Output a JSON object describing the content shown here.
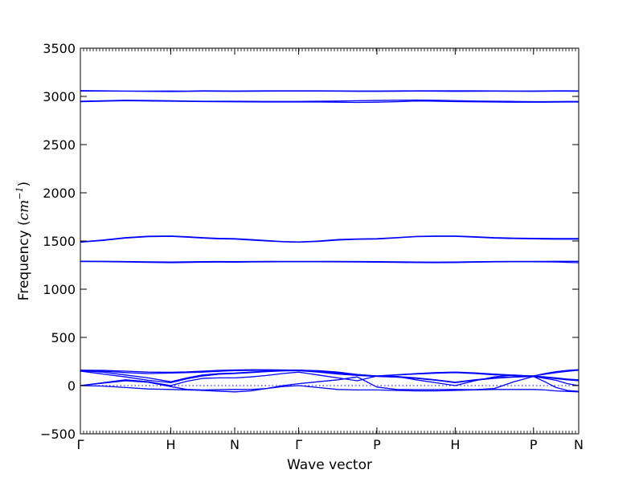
{
  "chart_data": {
    "type": "line",
    "xlabel": "Wave vector",
    "ylabel_text": "Frequency (",
    "ylabel_unit": "cm",
    "ylabel_exp": "−1",
    "ylabel_close": ")",
    "ylim": [
      -500,
      3500
    ],
    "y_ticks": [
      -500,
      0,
      500,
      1000,
      1500,
      2000,
      2500,
      3000,
      3500
    ],
    "k_points": [
      {
        "label": "Γ",
        "pos": 0
      },
      {
        "label": "H",
        "pos": 1
      },
      {
        "label": "N",
        "pos": 1.7071
      },
      {
        "label": "Γ",
        "pos": 2.4142
      },
      {
        "label": "P",
        "pos": 3.2802
      },
      {
        "label": "H",
        "pos": 4.1463
      },
      {
        "label": "P",
        "pos": 5.0123
      },
      {
        "label": "N",
        "pos": 5.5123
      }
    ],
    "zero_reference_line": true,
    "line_color": "#0000ff",
    "band_samples_per_segment": 5,
    "bands": [
      {
        "segments": [
          [
            3060,
            3058,
            3055,
            3055,
            3056
          ],
          [
            3056,
            3055,
            3058,
            3057,
            3056
          ],
          [
            3056,
            3057,
            3058,
            3058,
            3058
          ],
          [
            3058,
            3058,
            3057,
            3056,
            3056
          ],
          [
            3056,
            3057,
            3058,
            3058,
            3058
          ],
          [
            3058,
            3058,
            3057,
            3056,
            3056
          ],
          [
            3056,
            3057,
            3058,
            3058,
            3057
          ]
        ]
      },
      {
        "segments": [
          [
            3055,
            3055,
            3054,
            3052,
            3050
          ],
          [
            3050,
            3052,
            3054,
            3053,
            3052
          ],
          [
            3052,
            3053,
            3054,
            3055,
            3055
          ],
          [
            3055,
            3055,
            3054,
            3052,
            3052
          ],
          [
            3052,
            3053,
            3055,
            3054,
            3052
          ],
          [
            3052,
            3053,
            3054,
            3053,
            3052
          ],
          [
            3052,
            3053,
            3055,
            3054,
            3053
          ]
        ]
      },
      {
        "segments": [
          [
            2950,
            2955,
            2960,
            2958,
            2955
          ],
          [
            2955,
            2952,
            2950,
            2950,
            2950
          ],
          [
            2950,
            2949,
            2948,
            2948,
            2948
          ],
          [
            2948,
            2950,
            2952,
            2955,
            2958
          ],
          [
            2958,
            2960,
            2962,
            2960,
            2956
          ],
          [
            2956,
            2952,
            2950,
            2948,
            2946
          ],
          [
            2946,
            2946,
            2947,
            2948,
            2948
          ]
        ]
      },
      {
        "segments": [
          [
            2945,
            2950,
            2955,
            2952,
            2950
          ],
          [
            2950,
            2948,
            2946,
            2945,
            2944
          ],
          [
            2944,
            2943,
            2942,
            2942,
            2942
          ],
          [
            2942,
            2942,
            2940,
            2938,
            2940
          ],
          [
            2940,
            2945,
            2952,
            2950,
            2946
          ],
          [
            2946,
            2944,
            2942,
            2940,
            2940
          ],
          [
            2940,
            2940,
            2941,
            2942,
            2942
          ]
        ]
      },
      {
        "segments": [
          [
            1490,
            1510,
            1535,
            1550,
            1552
          ],
          [
            1552,
            1545,
            1535,
            1528,
            1525
          ],
          [
            1525,
            1515,
            1505,
            1495,
            1490
          ],
          [
            1490,
            1500,
            1515,
            1522,
            1525
          ],
          [
            1525,
            1535,
            1548,
            1552,
            1552
          ],
          [
            1552,
            1545,
            1535,
            1530,
            1528
          ],
          [
            1528,
            1527,
            1526,
            1526,
            1526
          ]
        ]
      },
      {
        "segments": [
          [
            1488,
            1505,
            1530,
            1545,
            1548
          ],
          [
            1548,
            1540,
            1530,
            1522,
            1520
          ],
          [
            1520,
            1510,
            1500,
            1492,
            1488
          ],
          [
            1488,
            1495,
            1510,
            1518,
            1520
          ],
          [
            1520,
            1532,
            1545,
            1548,
            1548
          ],
          [
            1548,
            1540,
            1530,
            1525,
            1522
          ],
          [
            1522,
            1520,
            1519,
            1519,
            1519
          ]
        ]
      },
      {
        "segments": [
          [
            1290,
            1289,
            1287,
            1284,
            1282
          ],
          [
            1282,
            1284,
            1286,
            1287,
            1286
          ],
          [
            1286,
            1287,
            1288,
            1288,
            1288
          ],
          [
            1288,
            1288,
            1288,
            1287,
            1286
          ],
          [
            1286,
            1284,
            1282,
            1281,
            1282
          ],
          [
            1282,
            1285,
            1287,
            1288,
            1288
          ],
          [
            1288,
            1288,
            1289,
            1289,
            1289
          ]
        ]
      },
      {
        "segments": [
          [
            1287,
            1286,
            1283,
            1278,
            1275
          ],
          [
            1275,
            1277,
            1280,
            1281,
            1280
          ],
          [
            1280,
            1282,
            1284,
            1285,
            1285
          ],
          [
            1285,
            1285,
            1284,
            1282,
            1280
          ],
          [
            1280,
            1278,
            1276,
            1275,
            1276
          ],
          [
            1276,
            1280,
            1284,
            1285,
            1285
          ],
          [
            1285,
            1284,
            1282,
            1278,
            1275
          ]
        ]
      },
      {
        "segments": [
          [
            160,
            158,
            150,
            140,
            138
          ],
          [
            138,
            142,
            150,
            158,
            162
          ],
          [
            162,
            164,
            164,
            162,
            160
          ],
          [
            160,
            155,
            140,
            115,
            100
          ],
          [
            100,
            112,
            125,
            135,
            140
          ],
          [
            140,
            132,
            120,
            108,
            100
          ],
          [
            100,
            125,
            145,
            158,
            165
          ]
        ]
      },
      {
        "segments": [
          [
            158,
            150,
            135,
            125,
            130
          ],
          [
            130,
            135,
            140,
            148,
            155
          ],
          [
            155,
            158,
            160,
            160,
            160
          ],
          [
            160,
            150,
            130,
            110,
            100
          ],
          [
            100,
            110,
            120,
            128,
            135
          ],
          [
            135,
            125,
            112,
            104,
            100
          ],
          [
            100,
            118,
            135,
            148,
            160
          ]
        ]
      },
      {
        "segments": [
          [
            155,
            140,
            110,
            80,
            40
          ],
          [
            40,
            80,
            110,
            125,
            130
          ],
          [
            130,
            140,
            150,
            157,
            160
          ],
          [
            160,
            145,
            125,
            110,
            100
          ],
          [
            100,
            95,
            80,
            60,
            35
          ],
          [
            35,
            60,
            80,
            92,
            100
          ],
          [
            100,
            90,
            80,
            68,
            60
          ]
        ]
      },
      {
        "segments": [
          [
            150,
            120,
            90,
            55,
            30
          ],
          [
            30,
            70,
            100,
            118,
            125
          ],
          [
            125,
            135,
            145,
            152,
            155
          ],
          [
            155,
            140,
            120,
            105,
            95
          ],
          [
            95,
            88,
            75,
            55,
            30
          ],
          [
            30,
            55,
            75,
            88,
            95
          ],
          [
            95,
            85,
            72,
            60,
            50
          ]
        ]
      },
      {
        "segments": [
          [
            0,
            30,
            60,
            40,
            0
          ],
          [
            0,
            45,
            75,
            80,
            80
          ],
          [
            80,
            90,
            105,
            125,
            140
          ],
          [
            140,
            110,
            80,
            50,
            100
          ],
          [
            100,
            95,
            60,
            30,
            0
          ],
          [
            0,
            50,
            90,
            110,
            95
          ],
          [
            95,
            75,
            55,
            20,
            0
          ]
        ]
      },
      {
        "segments": [
          [
            0,
            25,
            50,
            35,
            -10
          ],
          [
            -10,
            -40,
            -45,
            -42,
            -40
          ],
          [
            -40,
            -40,
            -30,
            0,
            20
          ],
          [
            20,
            40,
            60,
            90,
            -15
          ],
          [
            -15,
            -40,
            -42,
            -42,
            -40
          ],
          [
            -40,
            -42,
            -30,
            40,
            95
          ],
          [
            95,
            40,
            -20,
            -50,
            -60
          ]
        ]
      },
      {
        "segments": [
          [
            0,
            -5,
            -20,
            -35,
            -40
          ],
          [
            -40,
            -45,
            -50,
            -58,
            -65
          ],
          [
            -65,
            -55,
            -30,
            -10,
            0
          ],
          [
            0,
            -20,
            -40,
            -45,
            -45
          ],
          [
            -45,
            -50,
            -55,
            -55,
            -50
          ],
          [
            -50,
            -45,
            -40,
            -40,
            -40
          ],
          [
            -40,
            -45,
            -55,
            -60,
            -65
          ]
        ]
      }
    ]
  }
}
